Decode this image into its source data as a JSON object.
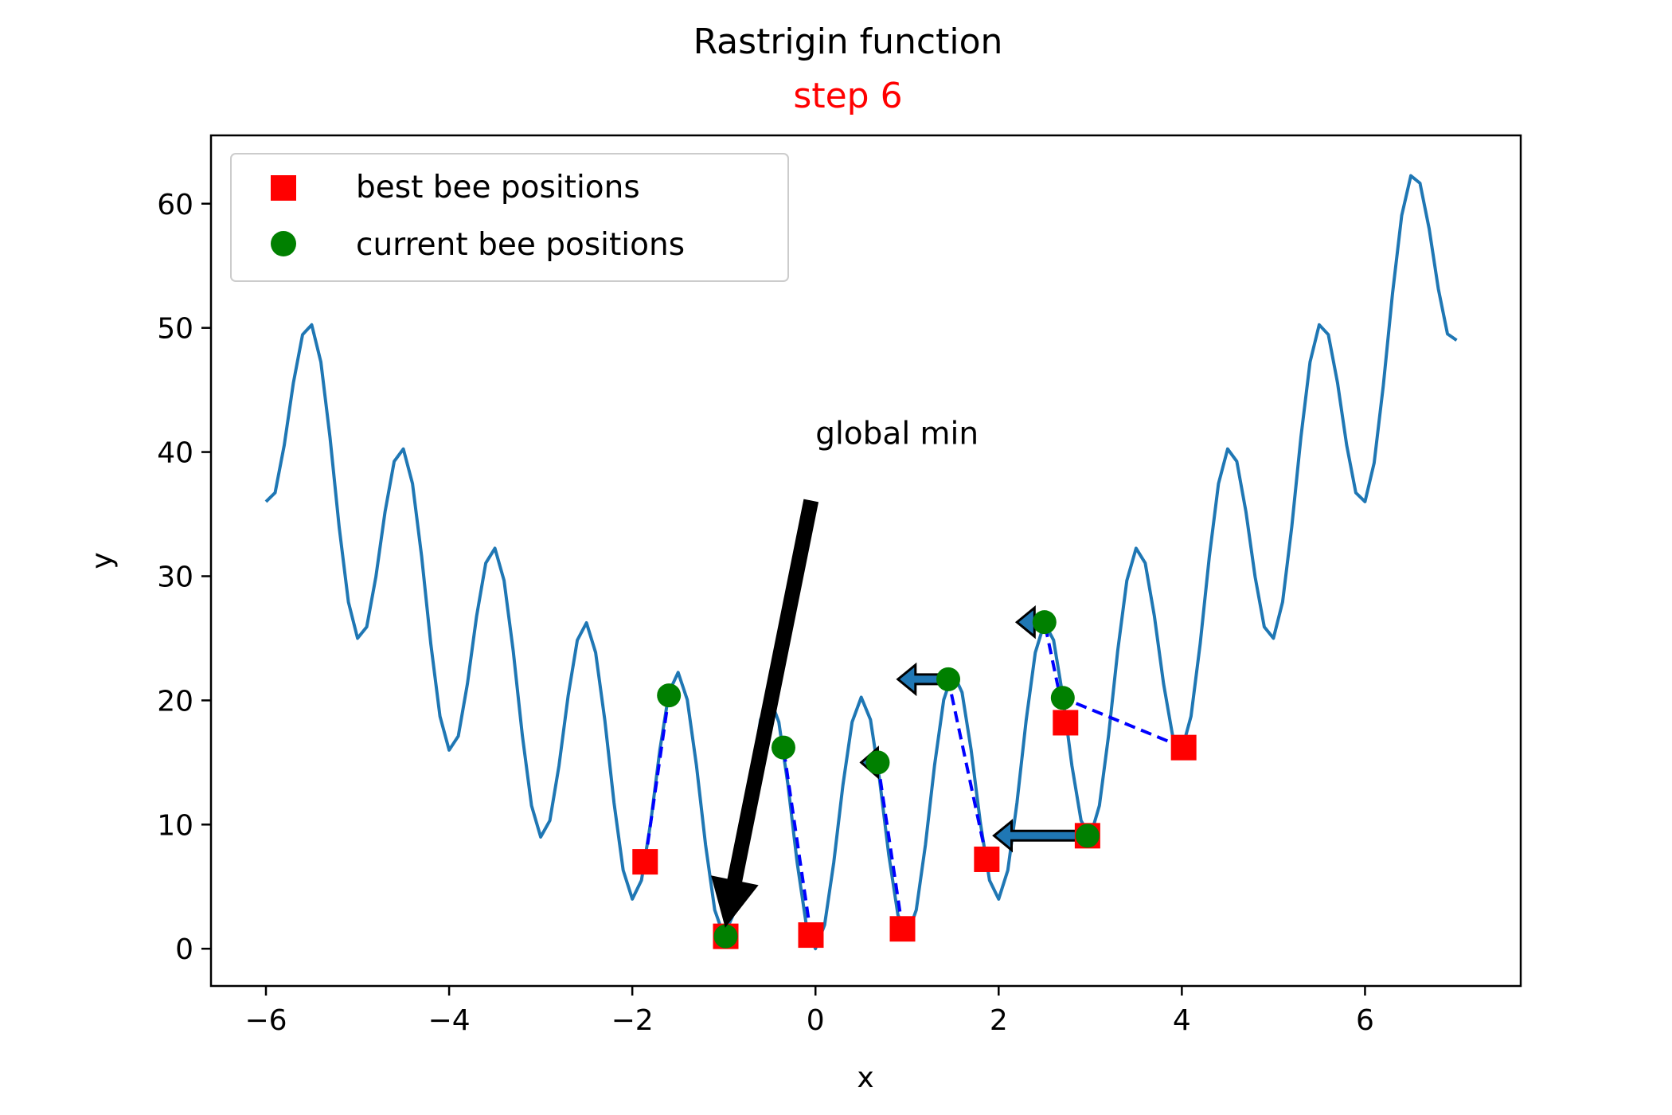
{
  "chart_data": {
    "type": "line",
    "title": "Rastrigin function",
    "subtitle": "step 6",
    "xlabel": "x",
    "ylabel": "y",
    "xlim": [
      -6.6,
      7.7
    ],
    "ylim": [
      -3,
      65.5
    ],
    "xticks": [
      -6,
      -4,
      -2,
      0,
      2,
      4,
      6
    ],
    "xtick_labels": [
      "−6",
      "−4",
      "−2",
      "0",
      "2",
      "4",
      "6"
    ],
    "yticks": [
      0,
      10,
      20,
      30,
      40,
      50,
      60
    ],
    "ytick_labels": [
      "0",
      "10",
      "20",
      "30",
      "40",
      "50",
      "60"
    ],
    "grid": false,
    "legend_position": "upper-left",
    "curve": {
      "name": "",
      "function": "10 + x^2 - 10 cos(2 pi x)",
      "x_min": -6,
      "x_max": 7,
      "samples": 131,
      "color": "#1f77b4"
    },
    "series": [
      {
        "name": "best bee positions",
        "marker": "square",
        "color": "#ff0000",
        "points": [
          {
            "x": -1.86,
            "y": 7.0
          },
          {
            "x": -0.98,
            "y": 1.0
          },
          {
            "x": -0.05,
            "y": 1.1
          },
          {
            "x": 0.95,
            "y": 1.6
          },
          {
            "x": 1.87,
            "y": 7.2
          },
          {
            "x": 2.73,
            "y": 18.2
          },
          {
            "x": 2.97,
            "y": 9.1
          },
          {
            "x": 4.02,
            "y": 16.2
          }
        ]
      },
      {
        "name": "current bee positions",
        "marker": "circle",
        "color": "#008000",
        "points": [
          {
            "x": -1.6,
            "y": 20.4
          },
          {
            "x": -0.98,
            "y": 1.0
          },
          {
            "x": -0.35,
            "y": 16.2
          },
          {
            "x": 0.68,
            "y": 15.0
          },
          {
            "x": 1.45,
            "y": 21.7
          },
          {
            "x": 2.5,
            "y": 26.3
          },
          {
            "x": 2.7,
            "y": 20.2
          },
          {
            "x": 2.97,
            "y": 9.1
          }
        ]
      }
    ],
    "links": [
      {
        "from": [
          -1.86,
          7.0
        ],
        "to": [
          -1.6,
          20.4
        ]
      },
      {
        "from": [
          -0.05,
          1.1
        ],
        "to": [
          -0.35,
          16.2
        ]
      },
      {
        "from": [
          0.95,
          1.6
        ],
        "to": [
          0.68,
          15.0
        ]
      },
      {
        "from": [
          1.87,
          7.2
        ],
        "to": [
          1.45,
          21.7
        ]
      },
      {
        "from": [
          2.73,
          18.2
        ],
        "to": [
          2.5,
          26.3
        ]
      },
      {
        "from": [
          4.02,
          16.2
        ],
        "to": [
          2.7,
          20.2
        ]
      }
    ],
    "velocity_arrows": [
      {
        "from": [
          0.68,
          15.0
        ],
        "to": [
          0.5,
          15.0
        ]
      },
      {
        "from": [
          1.45,
          21.7
        ],
        "to": [
          0.9,
          21.7
        ]
      },
      {
        "from": [
          2.5,
          26.3
        ],
        "to": [
          2.2,
          26.3
        ]
      },
      {
        "from": [
          2.97,
          9.1
        ],
        "to": [
          1.95,
          9.1
        ]
      }
    ],
    "velocity_arrow_color": "#1f77b4",
    "annotation": {
      "text": "global min",
      "text_at": [
        0,
        40
      ],
      "tail": [
        -0.05,
        36.0
      ],
      "point": [
        -0.98,
        1.0
      ],
      "color": "#000000"
    }
  },
  "colors": {
    "title": "#000000",
    "subtitle": "#ff0000",
    "link": "#0000ff"
  }
}
